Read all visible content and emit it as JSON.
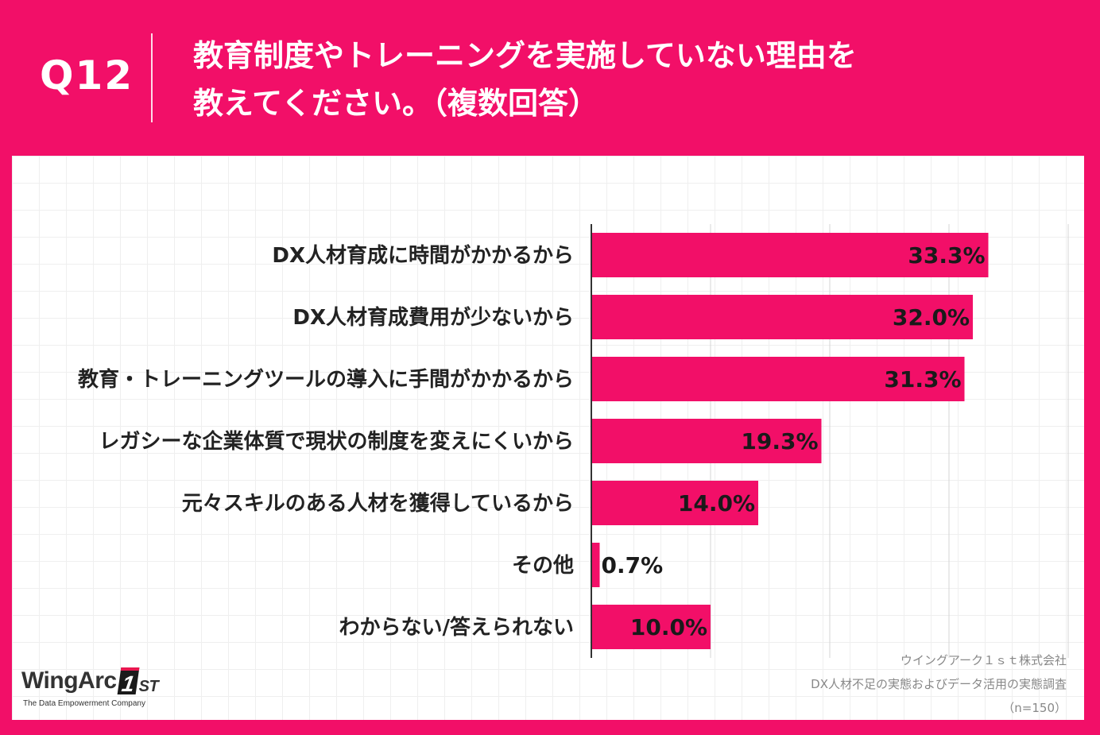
{
  "header": {
    "question_number": "Q12",
    "title_line1": "教育制度やトレーニングを実施していない理由を",
    "title_line2": "教えてください。（複数回答）"
  },
  "colors": {
    "background": "#f20f68",
    "bar": "#f20f68",
    "panel": "#ffffff"
  },
  "chart_data": {
    "type": "bar",
    "orientation": "horizontal",
    "categories": [
      "DX人材育成に時間がかかるから",
      "DX人材育成費用が少ないから",
      "教育・トレーニングツールの導入に手間がかかるから",
      "レガシーな企業体質で現状の制度を変えにくいから",
      "元々スキルのある人材を獲得しているから",
      "その他",
      "わからない/答えられない"
    ],
    "values": [
      33.3,
      32.0,
      31.3,
      19.3,
      14.0,
      0.7,
      10.0
    ],
    "value_labels": [
      "33.3%",
      "32.0%",
      "31.3%",
      "19.3%",
      "14.0%",
      "0.7%",
      "10.0%"
    ],
    "unit": "%",
    "xlim": [
      0,
      40
    ],
    "grid": true,
    "title": "",
    "xlabel": "",
    "ylabel": ""
  },
  "logo": {
    "brand": "WingArc",
    "mark": "1",
    "mark_suffix": "ST",
    "tagline": "The Data Empowerment Company"
  },
  "source": {
    "company": "ウイングアーク１ｓｔ株式会社",
    "survey": "DX人材不足の実態およびデータ活用の実態調査",
    "sample": "（n=150）"
  }
}
